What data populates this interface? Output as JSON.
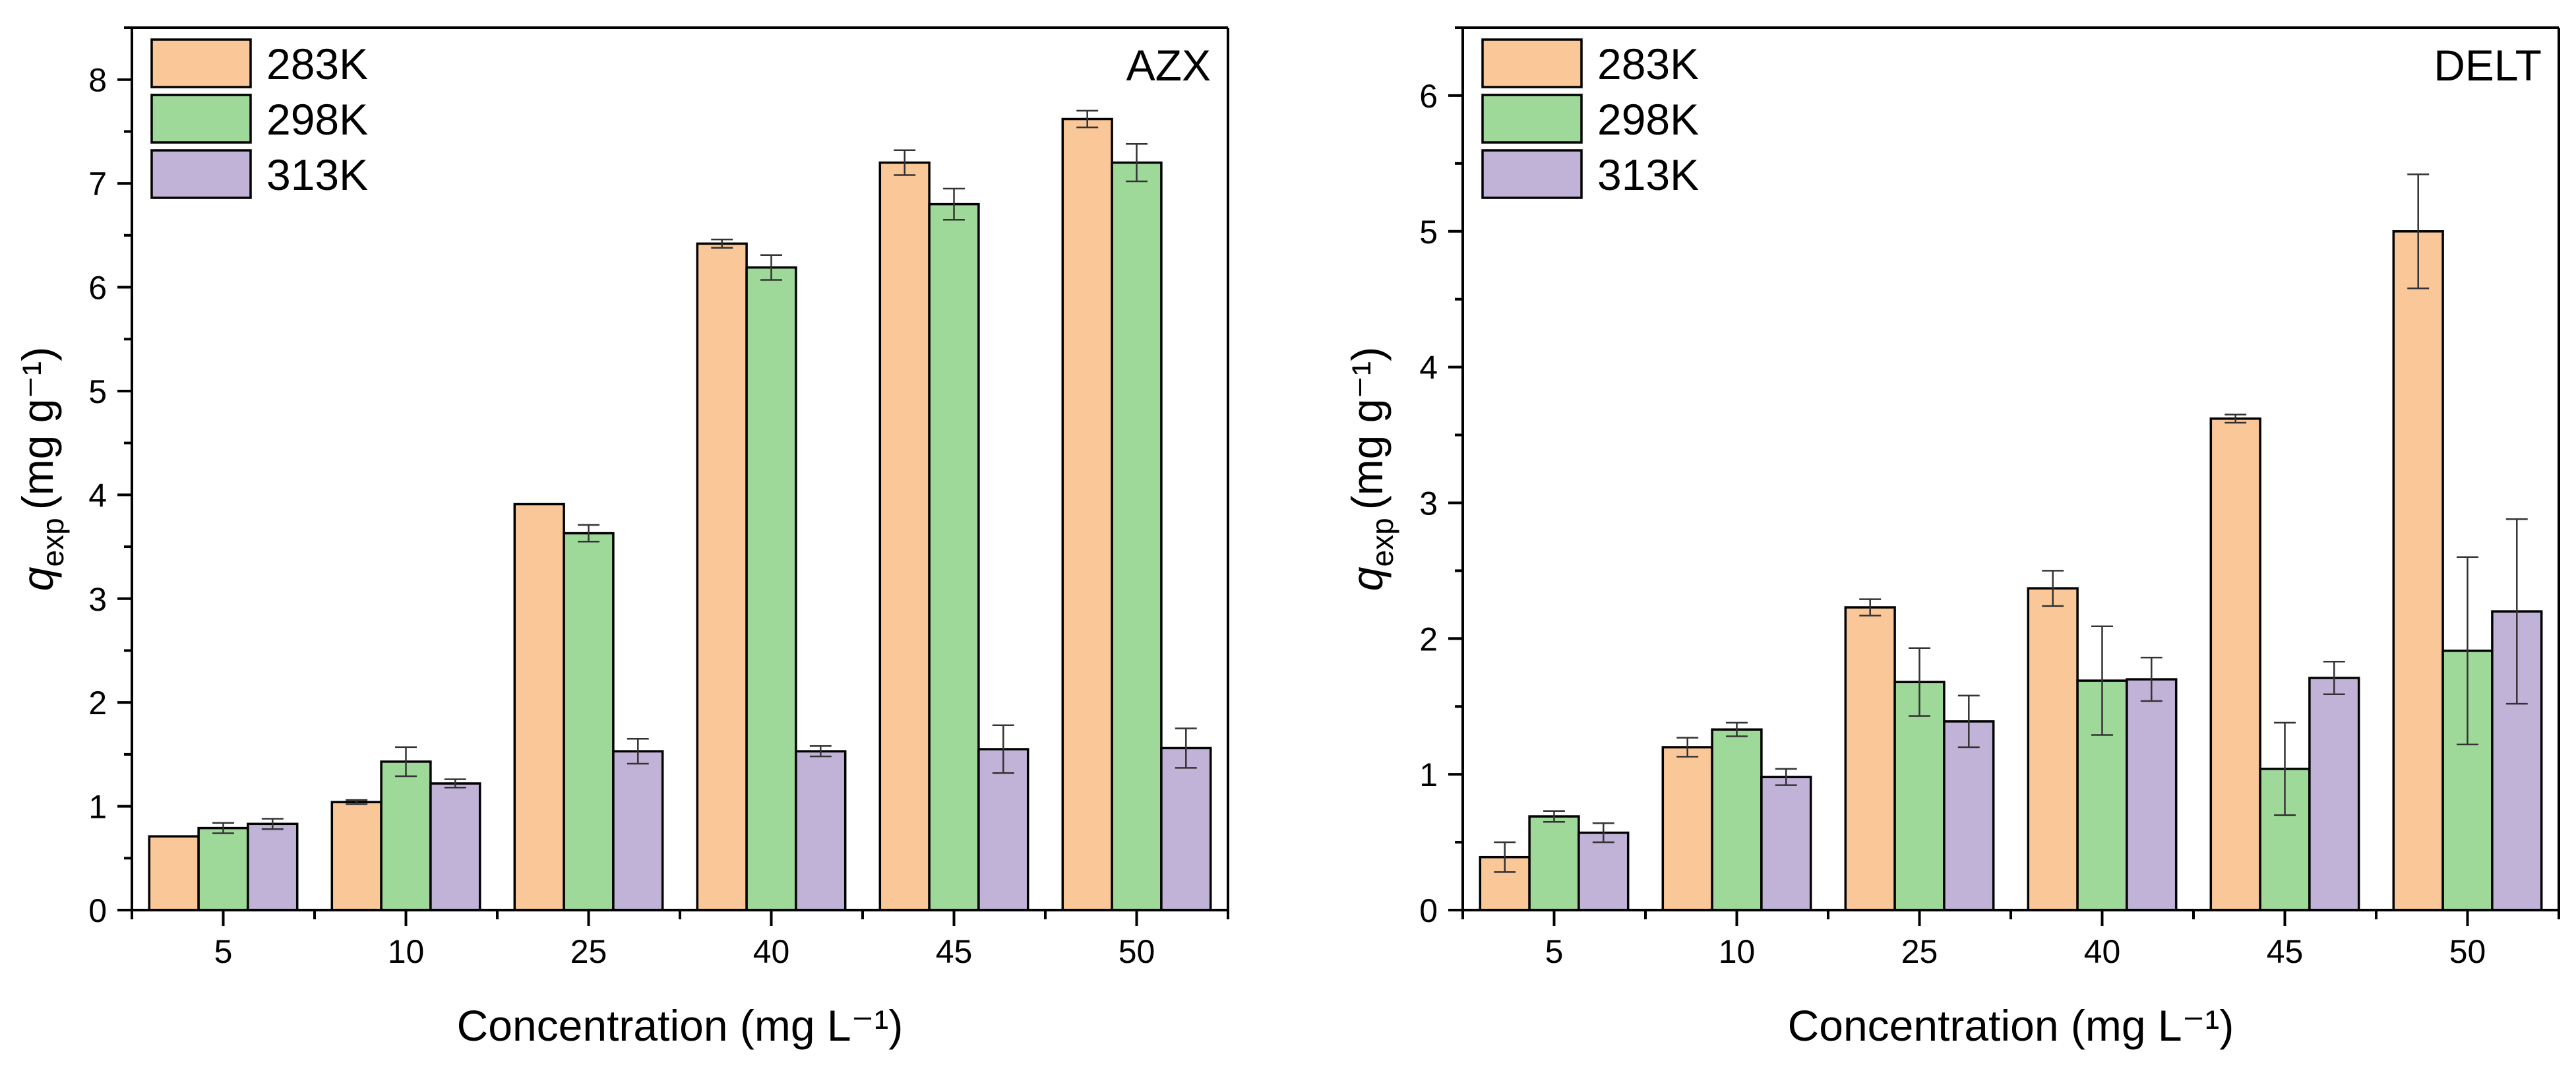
{
  "figure": {
    "colors": {
      "283K": "#FAC898",
      "298K": "#9ED99A",
      "313K": "#C1B3D8"
    }
  },
  "chart_data": [
    {
      "type": "bar",
      "panel_label": "AZX",
      "categories": [
        "5",
        "10",
        "25",
        "40",
        "45",
        "50"
      ],
      "xlabel": "Concentration (mg L⁻¹)",
      "ylabel_main": "q",
      "ylabel_sub": "exp",
      "ylabel_units": "(mg g⁻¹)",
      "ylim": [
        0,
        8.5
      ],
      "yticks": [
        0,
        1,
        2,
        3,
        4,
        5,
        6,
        7,
        8
      ],
      "legend_position": "top-left",
      "series": [
        {
          "name": "283K",
          "values": [
            0.71,
            1.04,
            3.91,
            6.42,
            7.2,
            7.62
          ],
          "errors": [
            0.0,
            0.02,
            0.0,
            0.04,
            0.12,
            0.08
          ]
        },
        {
          "name": "298K",
          "values": [
            0.79,
            1.43,
            3.63,
            6.19,
            6.8,
            7.2
          ],
          "errors": [
            0.05,
            0.14,
            0.08,
            0.12,
            0.15,
            0.18
          ]
        },
        {
          "name": "313K",
          "values": [
            0.83,
            1.22,
            1.53,
            1.53,
            1.55,
            1.56
          ],
          "errors": [
            0.05,
            0.04,
            0.12,
            0.05,
            0.23,
            0.19
          ]
        }
      ]
    },
    {
      "type": "bar",
      "panel_label": "DELT",
      "categories": [
        "5",
        "10",
        "25",
        "40",
        "45",
        "50"
      ],
      "xlabel": "Concentration (mg L⁻¹)",
      "ylabel_main": "q",
      "ylabel_sub": "exp",
      "ylabel_units": "(mg g⁻¹)",
      "ylim": [
        0,
        6.5
      ],
      "yticks": [
        0,
        1,
        2,
        3,
        4,
        5,
        6
      ],
      "legend_position": "top-left",
      "series": [
        {
          "name": "283K",
          "values": [
            0.39,
            1.2,
            2.23,
            2.37,
            3.62,
            5.0
          ],
          "errors": [
            0.11,
            0.07,
            0.06,
            0.13,
            0.03,
            0.42
          ]
        },
        {
          "name": "298K",
          "values": [
            0.69,
            1.33,
            1.68,
            1.69,
            1.04,
            1.91
          ],
          "errors": [
            0.04,
            0.05,
            0.25,
            0.4,
            0.34,
            0.69
          ]
        },
        {
          "name": "313K",
          "values": [
            0.57,
            0.98,
            1.39,
            1.7,
            1.71,
            2.2
          ],
          "errors": [
            0.07,
            0.06,
            0.19,
            0.16,
            0.12,
            0.68
          ]
        }
      ]
    }
  ]
}
